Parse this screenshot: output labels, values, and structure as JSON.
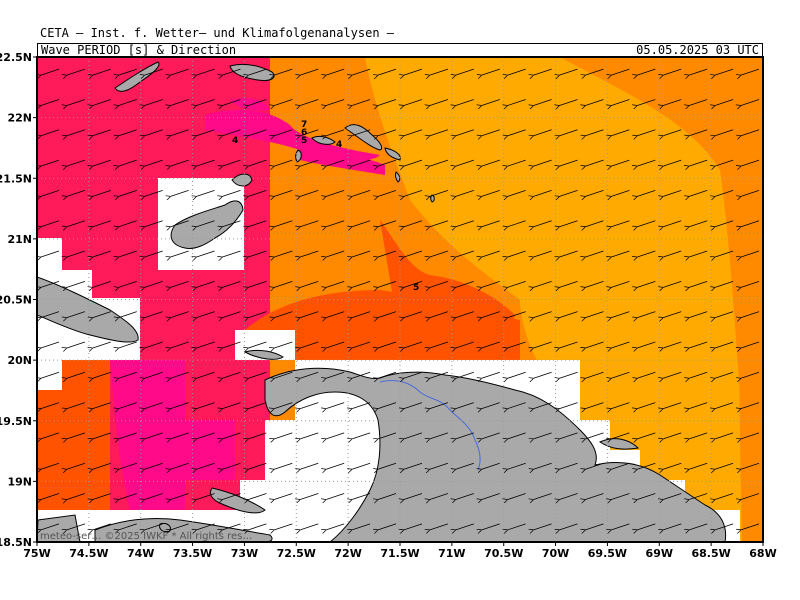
{
  "header": {
    "title": "CETA – Inst. f. Wetter– und Klimafolgenanalysen –",
    "subtitle": "Wave PERIOD [s] & Direction",
    "datetime": "05.05.2025 03 UTC"
  },
  "map": {
    "lon_range": [
      -75,
      -68
    ],
    "lat_range": [
      18.5,
      22.5
    ],
    "lon_ticks": [
      "75W",
      "74.5W",
      "74W",
      "73.5W",
      "73W",
      "72.5W",
      "72W",
      "71.5W",
      "71W",
      "70.5W",
      "70W",
      "69.5W",
      "69W",
      "68.5W",
      "68W"
    ],
    "lat_ticks": [
      "22.5N",
      "22N",
      "21.5N",
      "21N",
      "20.5N",
      "20N",
      "19.5N",
      "19N",
      "18.5N"
    ],
    "contour_labels": [
      "4",
      "7",
      "6",
      "5",
      "4",
      "5"
    ],
    "attribution": "meteo-ser… ©2025 IWKF * All rights res…",
    "grid": true,
    "colors": {
      "period_3_4": "#ff1a5a",
      "period_4_5": "#ff0a88",
      "period_5_6": "#ff5300",
      "period_6_7": "#ff8a00",
      "period_7_8": "#ffaa00",
      "land": "#a9a9a9",
      "river": "#4a6bd8"
    },
    "wave_direction": "from NE toward SW"
  }
}
